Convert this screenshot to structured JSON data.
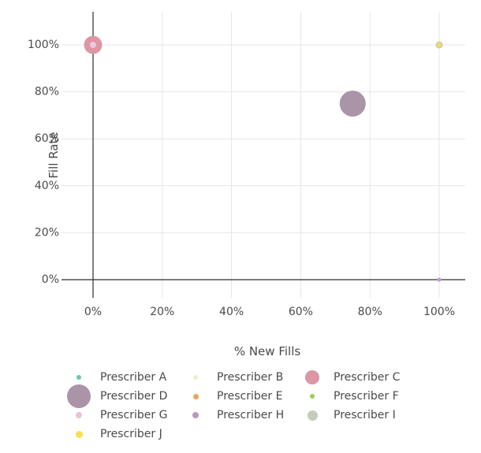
{
  "chart_data": {
    "type": "scatter",
    "title": "",
    "xlabel": "% New Fills",
    "ylabel": "Fill Rate",
    "xlim": [
      0,
      100
    ],
    "ylim": [
      0,
      100
    ],
    "x_ticks": [
      "0%",
      "20%",
      "40%",
      "60%",
      "80%",
      "100%"
    ],
    "y_ticks": [
      "0%",
      "20%",
      "40%",
      "60%",
      "80%",
      "100%"
    ],
    "grid": true,
    "axis_color": "#2e2e2e",
    "grid_color": "#e6e6e6",
    "text_color": "#4a4a4a",
    "points": [
      {
        "name": "Prescriber C",
        "x": 0,
        "y": 100,
        "r": 11.5,
        "color": "#dc96a4"
      },
      {
        "name": "Prescriber G",
        "x": 0,
        "y": 100,
        "r": 4,
        "color": "#ecc9da"
      },
      {
        "name": "Prescriber D",
        "x": 75,
        "y": 75,
        "r": 16.5,
        "color": "#ab93a8"
      },
      {
        "name": "Prescriber I",
        "x": 100,
        "y": 100,
        "r": 4.5,
        "color": "#c5ccba"
      },
      {
        "name": "Prescriber J",
        "x": 100,
        "y": 100,
        "r": 2.8,
        "color": "#f2e04c"
      },
      {
        "name": "Prescriber H",
        "x": 100,
        "y": 0,
        "r": 2.6,
        "color": "#bd9fc8"
      }
    ],
    "legend": {
      "position": "bottom",
      "columns": 3,
      "items": [
        {
          "label": "Prescriber A",
          "color": "#6cc5b1",
          "marker_r": 3
        },
        {
          "label": "Prescriber B",
          "color": "#eaf0c8",
          "marker_r": 3
        },
        {
          "label": "Prescriber C",
          "color": "#dc96a4",
          "marker_r": 9
        },
        {
          "label": "Prescriber D",
          "color": "#ab93a8",
          "marker_r": 15
        },
        {
          "label": "Prescriber E",
          "color": "#eba55e",
          "marker_r": 3.5
        },
        {
          "label": "Prescriber F",
          "color": "#9cc95e",
          "marker_r": 3
        },
        {
          "label": "Prescriber G",
          "color": "#e6c5d5",
          "marker_r": 4
        },
        {
          "label": "Prescriber H",
          "color": "#b998c4",
          "marker_r": 4
        },
        {
          "label": "Prescriber I",
          "color": "#c5ccba",
          "marker_r": 6.5
        },
        {
          "label": "Prescriber J",
          "color": "#f6e14c",
          "marker_r": 4.5
        }
      ]
    }
  }
}
